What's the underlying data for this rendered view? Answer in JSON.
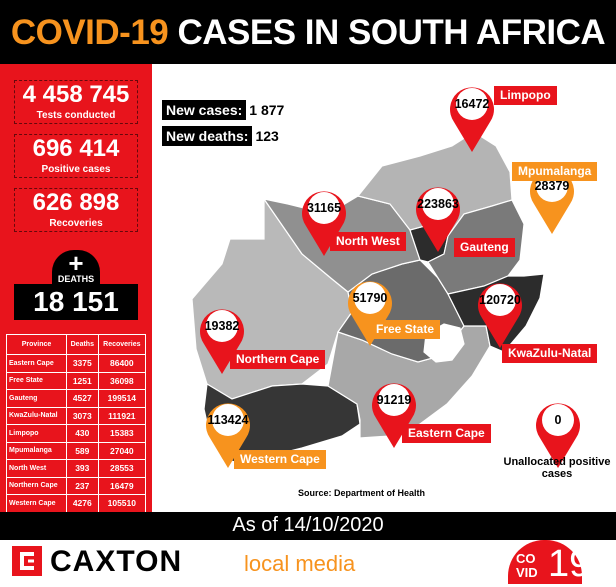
{
  "title": {
    "accent": "COVID-19",
    "rest": "CASES IN SOUTH AFRICA"
  },
  "stats": {
    "tests_value": "4 458 745",
    "tests_label": "Tests conducted",
    "positive_value": "696 414",
    "positive_label": "Positive cases",
    "recoveries_value": "626 898",
    "recoveries_label": "Recoveries",
    "deaths_icon": "+",
    "deaths_label": "DEATHS",
    "deaths_value": "18 151"
  },
  "table": {
    "headers": [
      "Province",
      "Deaths",
      "Recoveries"
    ],
    "rows": [
      [
        "Eastern Cape",
        "3375",
        "86400"
      ],
      [
        "Free State",
        "1251",
        "36098"
      ],
      [
        "Gauteng",
        "4527",
        "199514"
      ],
      [
        "KwaZulu-Natal",
        "3073",
        "111921"
      ],
      [
        "Limpopo",
        "430",
        "15383"
      ],
      [
        "Mpumalanga",
        "589",
        "27040"
      ],
      [
        "North West",
        "393",
        "28553"
      ],
      [
        "Northern Cape",
        "237",
        "16479"
      ],
      [
        "Western Cape",
        "4276",
        "105510"
      ]
    ]
  },
  "new_cases": {
    "label": "New cases:",
    "value": "1 877"
  },
  "new_deaths": {
    "label": "New deaths:",
    "value": "123"
  },
  "pins": [
    {
      "province": "Limpopo",
      "count": "16472",
      "color": "#e8141c"
    },
    {
      "province": "Mpumalanga",
      "count": "28379",
      "color": "#f7931e"
    },
    {
      "province": "North West",
      "count": "31165",
      "color": "#e8141c"
    },
    {
      "province": "Gauteng",
      "count": "223863",
      "color": "#e8141c"
    },
    {
      "province": "Free State",
      "count": "51790",
      "color": "#f7931e"
    },
    {
      "province": "KwaZulu-Natal",
      "count": "120720",
      "color": "#e8141c"
    },
    {
      "province": "Northern Cape",
      "count": "19382",
      "color": "#e8141c"
    },
    {
      "province": "Eastern Cape",
      "count": "91219",
      "color": "#e8141c"
    },
    {
      "province": "Western Cape",
      "count": "113424",
      "color": "#f7931e"
    }
  ],
  "unallocated": {
    "count": "0",
    "label": "Unallocated positive cases"
  },
  "source": "Source: Department of Health",
  "date": "As of 14/10/2020",
  "footer": {
    "brand": "CAXTON",
    "sub": "local media",
    "badge_top": "CO",
    "badge_bottom": "VID",
    "badge_number": "19"
  },
  "colors": {
    "red": "#e8141c",
    "orange": "#f7931e",
    "black": "#000000"
  }
}
